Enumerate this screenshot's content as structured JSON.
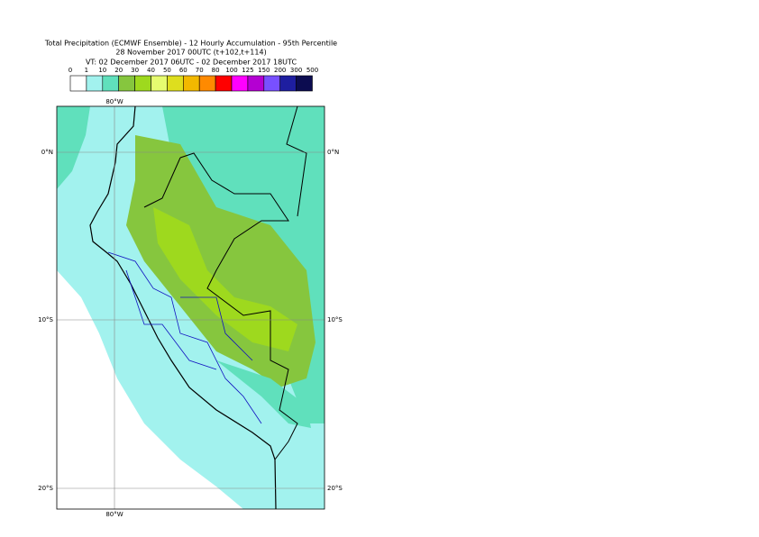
{
  "header": {
    "title": "Total Precipitation (ECMWF Ensemble) - 12 Hourly Accumulation - 95th Percentile",
    "run": "28 November 2017 00UTC (t+102,t+114)",
    "valid": "VT: 02 December 2017 06UTC - 02 December 2017 18UTC"
  },
  "legend": {
    "labels": [
      "0",
      "1",
      "10",
      "20",
      "30",
      "40",
      "50",
      "60",
      "70",
      "80",
      "100",
      "125",
      "150",
      "200",
      "300",
      "500"
    ],
    "colors": [
      "#ffffff",
      "#a2f2ee",
      "#60e0bc",
      "#86c63e",
      "#9ed91e",
      "#e6fc70",
      "#dede1e",
      "#f2b800",
      "#ff8a00",
      "#ff0000",
      "#ff00ff",
      "#b400d2",
      "#7850ff",
      "#1e1ea0",
      "#0c0c50"
    ]
  },
  "map": {
    "lon_labels": [
      "80°W"
    ],
    "lat_labels": [
      "0°N",
      "10°S",
      "20°S"
    ]
  }
}
